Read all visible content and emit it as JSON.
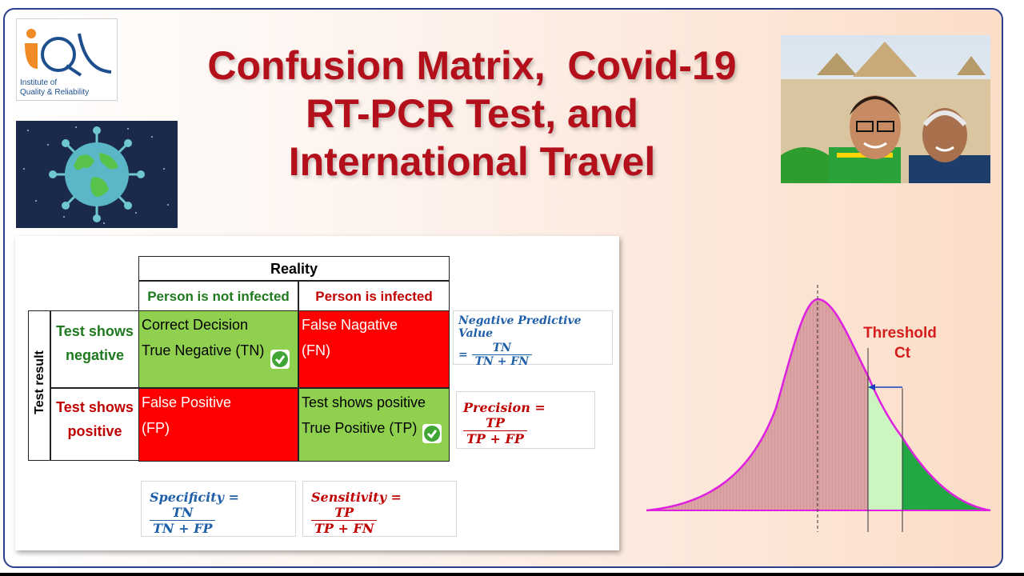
{
  "logo": {
    "line1": "Institute of",
    "line2": "Quality & Reliability",
    "accent": "#f08a24",
    "brand": "#1d4f8f"
  },
  "title": {
    "line1": "Confusion Matrix,  Covid-19",
    "line2": "RT-PCR Test, and",
    "line3": "International Travel"
  },
  "matrix": {
    "reality_header": "Reality",
    "test_result_label": "Test result",
    "col_not_infected": "Person is not infected",
    "col_infected": "Person is infected",
    "row_negative": [
      "Test shows",
      "negative"
    ],
    "row_positive": [
      "Test shows",
      "positive"
    ],
    "tn": [
      "Correct Decision",
      "True Negative (TN)"
    ],
    "fn": [
      "False Nagative",
      "(FN)"
    ],
    "fp": [
      "False Positive",
      "(FP)"
    ],
    "tp": [
      "Test shows positive",
      "True Positive  (TP)"
    ]
  },
  "formulas": {
    "npv": {
      "label": "Negative Predictive Value",
      "eq": "=",
      "num": "TN",
      "den": "TN + FN"
    },
    "precision": {
      "label": "Precision =",
      "num": "TP",
      "den": "TP + FP"
    },
    "specificity": {
      "label": "Specificity =",
      "num": "TN",
      "den": "TN + FP"
    },
    "sensitivity": {
      "label": "Sensitivity =",
      "num": "TP",
      "den": "TP + FN"
    }
  },
  "curve": {
    "threshold_line1": "Threshold",
    "threshold_line2": "Ct"
  },
  "colors": {
    "title": "#b3101c",
    "green_cell": "#8fd14f",
    "red_cell": "#ff0000",
    "curve": "#e020e0",
    "blue_formula": "#1f5fa8"
  }
}
